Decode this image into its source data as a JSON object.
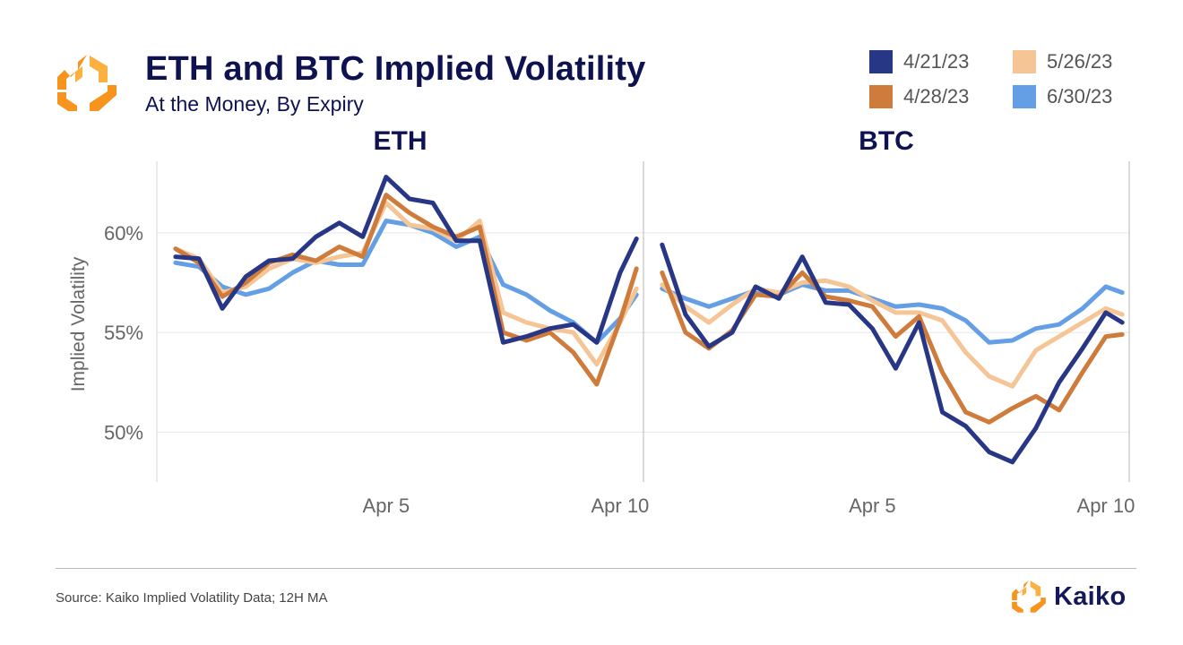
{
  "header": {
    "title": "ETH and BTC Implied Volatility",
    "subtitle": "At the Money, By Expiry"
  },
  "legend": {
    "items": [
      {
        "label": "4/21/23",
        "color": "#273685"
      },
      {
        "label": "5/26/23",
        "color": "#f5c596"
      },
      {
        "label": "4/28/23",
        "color": "#cf7b3b"
      },
      {
        "label": "6/30/23",
        "color": "#649fe6"
      }
    ]
  },
  "footer": {
    "source": "Source: Kaiko Implied Volatility Data; 12H MA",
    "brand": "Kaiko",
    "brand_colors": [
      "#f7941d",
      "#fcb040"
    ]
  },
  "chart_data": {
    "type": "line",
    "ylabel": "Implied Volatility",
    "ylim": [
      47.5,
      63.5
    ],
    "yticks": [
      50,
      55,
      60
    ],
    "ytick_labels": [
      "50%",
      "55%",
      "60%"
    ],
    "xlim": [
      0.1,
      10.5
    ],
    "xticks": [
      5,
      10
    ],
    "xtick_labels": [
      "Apr 5",
      "Apr 10"
    ],
    "x_unit": "day of April 2023",
    "grid": "horizontal",
    "legend_position": "top-right",
    "series_names": [
      "4/21/23",
      "4/28/23",
      "5/26/23",
      "6/30/23"
    ],
    "series_colors": [
      "#273685",
      "#cf7b3b",
      "#f5c596",
      "#649fe6"
    ],
    "panels": [
      {
        "title": "ETH",
        "x": [
          0.5,
          1.0,
          1.5,
          2.0,
          2.5,
          3.0,
          3.5,
          4.0,
          4.5,
          5.0,
          5.5,
          6.0,
          6.5,
          7.0,
          7.5,
          8.0,
          8.5,
          9.0,
          9.5,
          10.0,
          10.35
        ],
        "series": [
          {
            "values": [
              58.8,
              58.7,
              56.2,
              57.8,
              58.6,
              58.7,
              59.8,
              60.5,
              59.8,
              62.8,
              61.7,
              61.5,
              59.6,
              59.6,
              54.5,
              54.8,
              55.2,
              55.4,
              54.5,
              58.0,
              59.7
            ]
          },
          {
            "values": [
              59.2,
              58.5,
              56.8,
              57.5,
              58.5,
              58.9,
              58.6,
              59.3,
              58.8,
              61.9,
              61.0,
              60.3,
              59.8,
              60.3,
              55.0,
              54.6,
              55.0,
              54.0,
              52.4,
              55.6,
              58.2
            ]
          },
          {
            "values": [
              59.2,
              58.7,
              57.0,
              57.3,
              58.2,
              58.7,
              58.5,
              58.8,
              59.0,
              61.5,
              60.4,
              60.2,
              59.6,
              60.6,
              56.0,
              55.5,
              55.2,
              55.0,
              53.4,
              55.5,
              57.2
            ]
          },
          {
            "values": [
              58.5,
              58.3,
              57.3,
              56.9,
              57.2,
              58.0,
              58.6,
              58.4,
              58.4,
              60.6,
              60.4,
              60.0,
              59.3,
              59.8,
              57.4,
              56.9,
              56.1,
              55.5,
              54.5,
              55.7,
              56.9
            ]
          }
        ]
      },
      {
        "title": "BTC",
        "x": [
          0.5,
          1.0,
          1.5,
          2.0,
          2.5,
          3.0,
          3.5,
          4.0,
          4.5,
          5.0,
          5.5,
          6.0,
          6.5,
          7.0,
          7.5,
          8.0,
          8.5,
          9.0,
          9.5,
          10.0,
          10.35
        ],
        "series": [
          {
            "values": [
              59.4,
              55.9,
              54.3,
              55.0,
              57.3,
              56.7,
              58.8,
              56.5,
              56.4,
              55.2,
              53.2,
              55.5,
              51.0,
              50.3,
              49.0,
              48.5,
              50.2,
              52.5,
              54.2,
              56.0,
              55.5
            ]
          },
          {
            "values": [
              58.0,
              55.0,
              54.2,
              55.1,
              56.9,
              56.8,
              58.0,
              56.8,
              56.6,
              56.3,
              54.8,
              55.8,
              53.0,
              51.0,
              50.5,
              51.2,
              51.8,
              51.1,
              53.0,
              54.8,
              54.9
            ]
          },
          {
            "values": [
              57.4,
              56.3,
              55.5,
              56.4,
              57.2,
              57.0,
              57.5,
              57.6,
              57.3,
              56.6,
              56.0,
              56.0,
              55.6,
              54.0,
              52.8,
              52.3,
              54.1,
              54.8,
              55.5,
              56.2,
              55.9
            ]
          },
          {
            "values": [
              57.2,
              56.7,
              56.3,
              56.7,
              57.1,
              56.9,
              57.4,
              57.1,
              57.1,
              56.7,
              56.3,
              56.4,
              56.2,
              55.6,
              54.5,
              54.6,
              55.2,
              55.4,
              56.2,
              57.3,
              57.0
            ]
          }
        ]
      }
    ]
  }
}
